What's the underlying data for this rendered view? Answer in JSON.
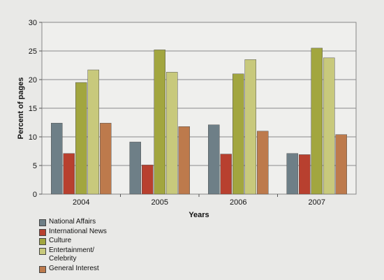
{
  "chart_data": {
    "type": "bar",
    "title": "",
    "xlabel": "Years",
    "ylabel": "Percent of pages",
    "categories": [
      "2004",
      "2005",
      "2006",
      "2007"
    ],
    "ylim": [
      0,
      30
    ],
    "yticks": [
      0,
      5,
      10,
      15,
      20,
      25,
      30
    ],
    "grid": true,
    "legend_position": "bottom-left",
    "series": [
      {
        "name": "National Affairs",
        "color": "#6e7f87",
        "values": [
          12.4,
          9.1,
          12.1,
          7.1
        ]
      },
      {
        "name": "International News",
        "color": "#b8402f",
        "values": [
          7.1,
          5.1,
          7.0,
          6.9
        ]
      },
      {
        "name": "Culture",
        "color": "#a2a63f",
        "values": [
          19.5,
          25.2,
          21.0,
          25.5
        ]
      },
      {
        "name": "Entertainment/\nCelebrity",
        "color": "#c8c97c",
        "values": [
          21.7,
          21.3,
          23.5,
          23.8
        ]
      },
      {
        "name": "General Interest",
        "color": "#bd7a4c",
        "values": [
          12.4,
          11.8,
          11.0,
          10.4
        ]
      }
    ]
  }
}
